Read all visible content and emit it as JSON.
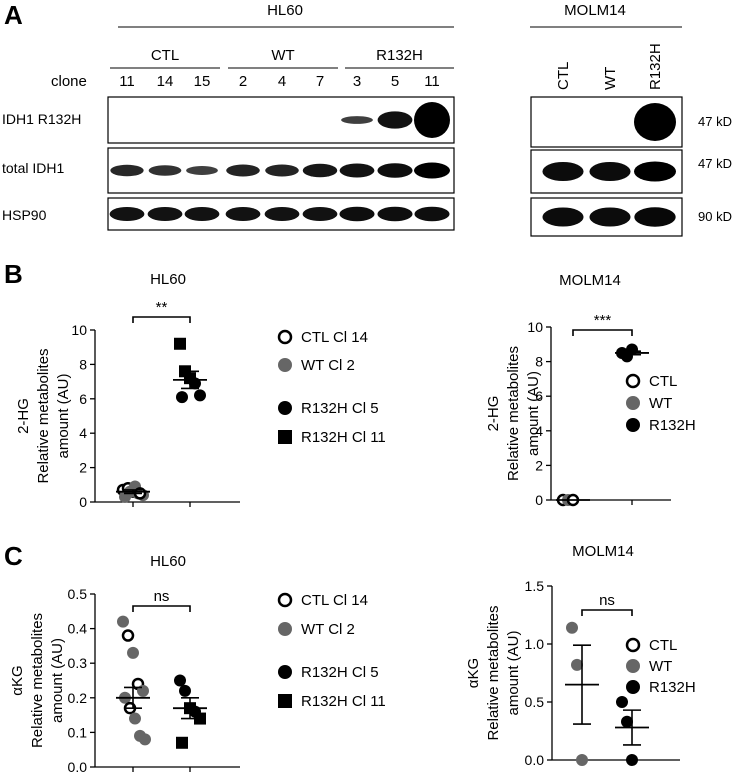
{
  "panels": {
    "a": "A",
    "b": "B",
    "c": "C"
  },
  "blot": {
    "hl60_title": "HL60",
    "molm14_title": "MOLM14",
    "group_labels": [
      "CTL",
      "WT",
      "R132H"
    ],
    "clone_label": "clone",
    "clones": [
      "11",
      "14",
      "15",
      "2",
      "4",
      "7",
      "3",
      "5",
      "11"
    ],
    "row_labels": [
      "IDH1 R132H",
      "total IDH1",
      "HSP90"
    ],
    "molm_lanes": [
      "CTL",
      "WT",
      "R132H"
    ],
    "kd_labels": [
      "47 kD",
      "47 kD",
      "90 kD"
    ],
    "band_intensity_hl60": [
      [
        0,
        0,
        0,
        0,
        0,
        0,
        0.3,
        0.8,
        1.0
      ],
      [
        0.55,
        0.45,
        0.3,
        0.6,
        0.6,
        0.75,
        0.8,
        0.85,
        1.0
      ],
      [
        0.8,
        0.8,
        0.8,
        0.8,
        0.8,
        0.8,
        0.85,
        0.85,
        0.85
      ]
    ],
    "band_intensity_molm": [
      [
        0,
        0,
        1.0
      ],
      [
        0.85,
        0.85,
        1.0
      ],
      [
        0.85,
        0.85,
        0.9
      ]
    ]
  },
  "chart_data": [
    {
      "type": "scatter",
      "title": "HL60",
      "ylabel": "2-HG\nRelative metabolites\namount (AU)",
      "ylim": [
        0,
        10
      ],
      "yticks": [
        "0",
        "2",
        "4",
        "6",
        "8",
        "10"
      ],
      "significance": "**",
      "groups": [
        {
          "name": "CTL Cl 14 / WT Cl 2",
          "points": [
            {
              "y": 0.7,
              "m": "open"
            },
            {
              "y": 0.8,
              "m": "open"
            },
            {
              "y": 0.6,
              "m": "open"
            },
            {
              "y": 0.5,
              "m": "gray"
            },
            {
              "y": 0.4,
              "m": "gray"
            },
            {
              "y": 0.3,
              "m": "gray"
            },
            {
              "y": 0.6,
              "m": "gray"
            },
            {
              "y": 0.9,
              "m": "gray"
            },
            {
              "y": 0.5,
              "m": "open"
            }
          ],
          "mean": 0.6,
          "sem": 0.1
        },
        {
          "name": "R132H",
          "points": [
            {
              "y": 9.2,
              "m": "square"
            },
            {
              "y": 7.6,
              "m": "square"
            },
            {
              "y": 7.2,
              "m": "square"
            },
            {
              "y": 6.9,
              "m": "circle"
            },
            {
              "y": 6.2,
              "m": "circle"
            },
            {
              "y": 6.1,
              "m": "circle"
            }
          ],
          "mean": 7.1,
          "sem": 0.5
        }
      ],
      "legend": [
        "CTL Cl  14",
        "WT Cl  2",
        "R132H Cl  5",
        "R132H Cl 11"
      ]
    },
    {
      "type": "scatter",
      "title": "MOLM14",
      "ylabel": "2-HG\nRelative metabolites\namount (AU)",
      "ylim": [
        0,
        10
      ],
      "yticks": [
        "0",
        "2",
        "4",
        "6",
        "8",
        "10"
      ],
      "significance": "***",
      "groups": [
        {
          "name": "CTL/WT",
          "points": [
            {
              "y": 0.0,
              "m": "open"
            },
            {
              "y": 0.0,
              "m": "gray"
            },
            {
              "y": 0.0,
              "m": "open"
            }
          ],
          "mean": 0.0,
          "sem": 0.0
        },
        {
          "name": "R132H",
          "points": [
            {
              "y": 8.5,
              "m": "circle"
            },
            {
              "y": 8.3,
              "m": "circle"
            },
            {
              "y": 8.7,
              "m": "circle"
            }
          ],
          "mean": 8.5,
          "sem": 0.1
        }
      ],
      "legend": [
        "CTL",
        "WT",
        "R132H"
      ]
    },
    {
      "type": "scatter",
      "title": "HL60",
      "ylabel": "αKG\nRelative metabolites\namount (AU)",
      "ylim": [
        0,
        0.5
      ],
      "yticks": [
        "0.0",
        "0.1",
        "0.2",
        "0.3",
        "0.4",
        "0.5"
      ],
      "significance": "ns",
      "groups": [
        {
          "name": "CTL Cl 14 / WT Cl 2",
          "points": [
            {
              "y": 0.42,
              "m": "gray"
            },
            {
              "y": 0.38,
              "m": "open"
            },
            {
              "y": 0.33,
              "m": "gray"
            },
            {
              "y": 0.24,
              "m": "open"
            },
            {
              "y": 0.22,
              "m": "gray"
            },
            {
              "y": 0.2,
              "m": "gray"
            },
            {
              "y": 0.17,
              "m": "open"
            },
            {
              "y": 0.14,
              "m": "gray"
            },
            {
              "y": 0.09,
              "m": "gray"
            },
            {
              "y": 0.08,
              "m": "gray"
            }
          ],
          "mean": 0.2,
          "sem": 0.03
        },
        {
          "name": "R132H",
          "points": [
            {
              "y": 0.25,
              "m": "circle"
            },
            {
              "y": 0.22,
              "m": "circle"
            },
            {
              "y": 0.17,
              "m": "square"
            },
            {
              "y": 0.16,
              "m": "circle"
            },
            {
              "y": 0.14,
              "m": "square"
            },
            {
              "y": 0.07,
              "m": "square"
            }
          ],
          "mean": 0.17,
          "sem": 0.03
        }
      ],
      "legend": [
        "CTL Cl  14",
        "WT Cl  2",
        "R132H Cl  5",
        "R132H Cl 11"
      ]
    },
    {
      "type": "scatter",
      "title": "MOLM14",
      "ylabel": "αKG\nRelative metabolites\namount (AU)",
      "ylim": [
        0,
        1.5
      ],
      "yticks": [
        "0.0",
        "0.5",
        "1.0",
        "1.5"
      ],
      "significance": "ns",
      "groups": [
        {
          "name": "CTL/WT",
          "points": [
            {
              "y": 1.14,
              "m": "gray"
            },
            {
              "y": 0.82,
              "m": "gray"
            },
            {
              "y": 0.0,
              "m": "gray"
            }
          ],
          "mean": 0.65,
          "sem": 0.34
        },
        {
          "name": "R132H",
          "points": [
            {
              "y": 0.5,
              "m": "circle"
            },
            {
              "y": 0.33,
              "m": "circle"
            },
            {
              "y": 0.0,
              "m": "circle"
            }
          ],
          "mean": 0.28,
          "sem": 0.15
        }
      ],
      "legend": [
        "CTL",
        "WT",
        "R132H"
      ]
    }
  ]
}
